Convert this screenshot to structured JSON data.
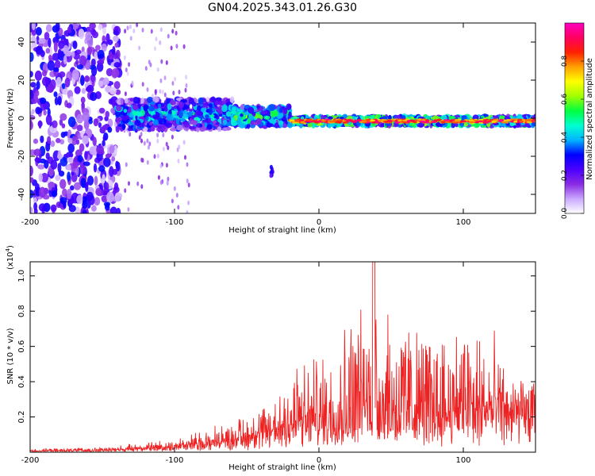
{
  "chart_data": [
    {
      "type": "heatmap",
      "title": "GN04.2025.343.01.26.G30",
      "xlabel": "Height of straight line (km)",
      "ylabel": "Frequency (Hz)",
      "xlim": [
        -200,
        150
      ],
      "ylim": [
        -50,
        50
      ],
      "x_ticks": [
        -200,
        -100,
        0,
        100
      ],
      "y_ticks": [
        -40,
        -20,
        0,
        20,
        40
      ],
      "colorbar": {
        "label": "Normalized spectral amplitude",
        "range": [
          0,
          1
        ],
        "ticks": [
          "0.0",
          "0.2",
          "0.4",
          "0.6",
          "0.8"
        ],
        "colors": [
          "#ffffff",
          "#c9a8ff",
          "#8a2be2",
          "#4b00ff",
          "#0000ff",
          "#00b4ff",
          "#00ffd0",
          "#00ff40",
          "#a0ff00",
          "#ffff00",
          "#ffa000",
          "#ff2000",
          "#ff0060",
          "#ff00c0"
        ]
      },
      "regions": [
        {
          "x_range": [
            -200,
            -140
          ],
          "freq_center": 0,
          "freq_spread": 50,
          "amplitude": 0.25,
          "description": "broadband noise"
        },
        {
          "x_range": [
            -140,
            -60
          ],
          "freq_center": 2,
          "freq_spread": 8,
          "amplitude": 0.4
        },
        {
          "x_range": [
            -60,
            -20
          ],
          "freq_center": 1,
          "freq_spread": 5,
          "amplitude": 0.5
        },
        {
          "x_range": [
            -20,
            150
          ],
          "freq_center": -1.5,
          "freq_spread": 2,
          "amplitude": 0.85
        }
      ],
      "isolated_blob": {
        "x": -33,
        "freq": -28,
        "amplitude": 0.3
      }
    },
    {
      "type": "line",
      "xlabel": "Height of straight line (km)",
      "ylabel": "SNR (10 * v/v)",
      "y_scale_label": "(x10",
      "y_scale_exp": "4",
      "y_scale_close": ")",
      "xlim": [
        -200,
        150
      ],
      "ylim": [
        0,
        1.08
      ],
      "x_ticks": [
        -200,
        -100,
        0,
        100
      ],
      "y_ticks": [
        "0.2",
        "0.4",
        "0.6",
        "0.8",
        "1.0"
      ],
      "series": [
        {
          "name": "SNR",
          "color": "#ee2222",
          "envelope": {
            "x": [
              -200,
              -150,
              -120,
              -100,
              -80,
              -60,
              -40,
              -25,
              -15,
              0,
              10,
              20,
              30,
              38,
              50,
              60,
              70,
              80,
              90,
              100,
              110,
              120,
              130,
              140,
              150
            ],
            "base": [
              0.01,
              0.015,
              0.03,
              0.04,
              0.06,
              0.08,
              0.12,
              0.15,
              0.18,
              0.2,
              0.22,
              0.25,
              0.27,
              0.3,
              0.28,
              0.26,
              0.28,
              0.27,
              0.28,
              0.27,
              0.25,
              0.3,
              0.32,
              0.35,
              0.36
            ],
            "peak": [
              0.02,
              0.03,
              0.06,
              0.09,
              0.14,
              0.2,
              0.3,
              0.45,
              0.6,
              0.58,
              0.7,
              0.85,
              0.9,
              1.08,
              0.88,
              0.85,
              0.8,
              0.75,
              0.8,
              0.82,
              0.78,
              0.73,
              0.5,
              0.45,
              0.42
            ]
          }
        }
      ]
    }
  ]
}
